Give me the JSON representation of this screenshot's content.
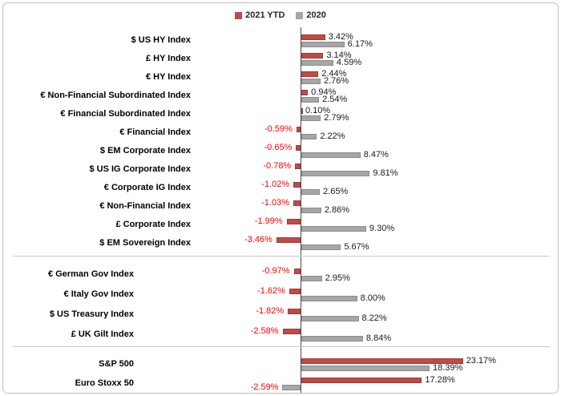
{
  "legend": {
    "items": [
      {
        "label": "2021 YTD",
        "color": "#BE4B48"
      },
      {
        "label": "2020",
        "color": "#A6A6A6"
      }
    ]
  },
  "colors": {
    "bar_2021": "#BE4B48",
    "bar_2021_border": "#9C3A38",
    "bar_2020": "#A6A6A6",
    "bar_2020_border": "#8C8C8C",
    "negative_label": "#FF0000",
    "positive_label": "#1A1A1A",
    "axis_line": "#4D4D4D",
    "separator": "#C9C9C9",
    "frame_border": "#BFBFBF"
  },
  "chart_data": {
    "type": "bar",
    "orientation": "horizontal",
    "series_names": [
      "2021 YTD",
      "2020"
    ],
    "unit": "percent",
    "value_label_format": "0.00%",
    "zero_axis": true,
    "legend_position": "top-center",
    "groups": [
      {
        "name": "credit-indices",
        "rows": [
          {
            "label": "$ US HY Index",
            "values": [
              3.42,
              6.17
            ]
          },
          {
            "label": "£ HY Index",
            "values": [
              3.14,
              4.59
            ]
          },
          {
            "label": "€ HY Index",
            "values": [
              2.44,
              2.76
            ]
          },
          {
            "label": "€ Non-Financial Subordinated Index",
            "values": [
              0.94,
              2.54
            ]
          },
          {
            "label": "€ Financial Subordinated Index",
            "values": [
              0.1,
              2.79
            ]
          },
          {
            "label": "€ Financial Index",
            "values": [
              -0.59,
              2.22
            ]
          },
          {
            "label": "$ EM Corporate Index",
            "values": [
              -0.65,
              8.47
            ]
          },
          {
            "label": "$ US IG Corporate Index",
            "values": [
              -0.78,
              9.81
            ]
          },
          {
            "label": "€ Corporate IG Index",
            "values": [
              -1.02,
              2.65
            ]
          },
          {
            "label": "€ Non-Financial Index",
            "values": [
              -1.03,
              2.86
            ]
          },
          {
            "label": "£ Corporate Index",
            "values": [
              -1.99,
              9.3
            ]
          },
          {
            "label": "$ EM Sovereign Index",
            "values": [
              -3.46,
              5.67
            ]
          }
        ]
      },
      {
        "name": "government-indices",
        "rows": [
          {
            "label": "€ German Gov Index",
            "values": [
              -0.97,
              2.95
            ]
          },
          {
            "label": "€ Italy Gov Index",
            "values": [
              -1.62,
              8.0
            ]
          },
          {
            "label": "$ US Treasury Index",
            "values": [
              -1.82,
              8.22
            ]
          },
          {
            "label": "£ UK Gilt Index",
            "values": [
              -2.58,
              8.84
            ]
          }
        ]
      },
      {
        "name": "equity-indices",
        "rows": [
          {
            "label": "S&P 500",
            "values": [
              23.17,
              18.39
            ]
          },
          {
            "label": "Euro Stoxx 50",
            "values": [
              17.28,
              -2.59
            ]
          }
        ]
      }
    ]
  }
}
